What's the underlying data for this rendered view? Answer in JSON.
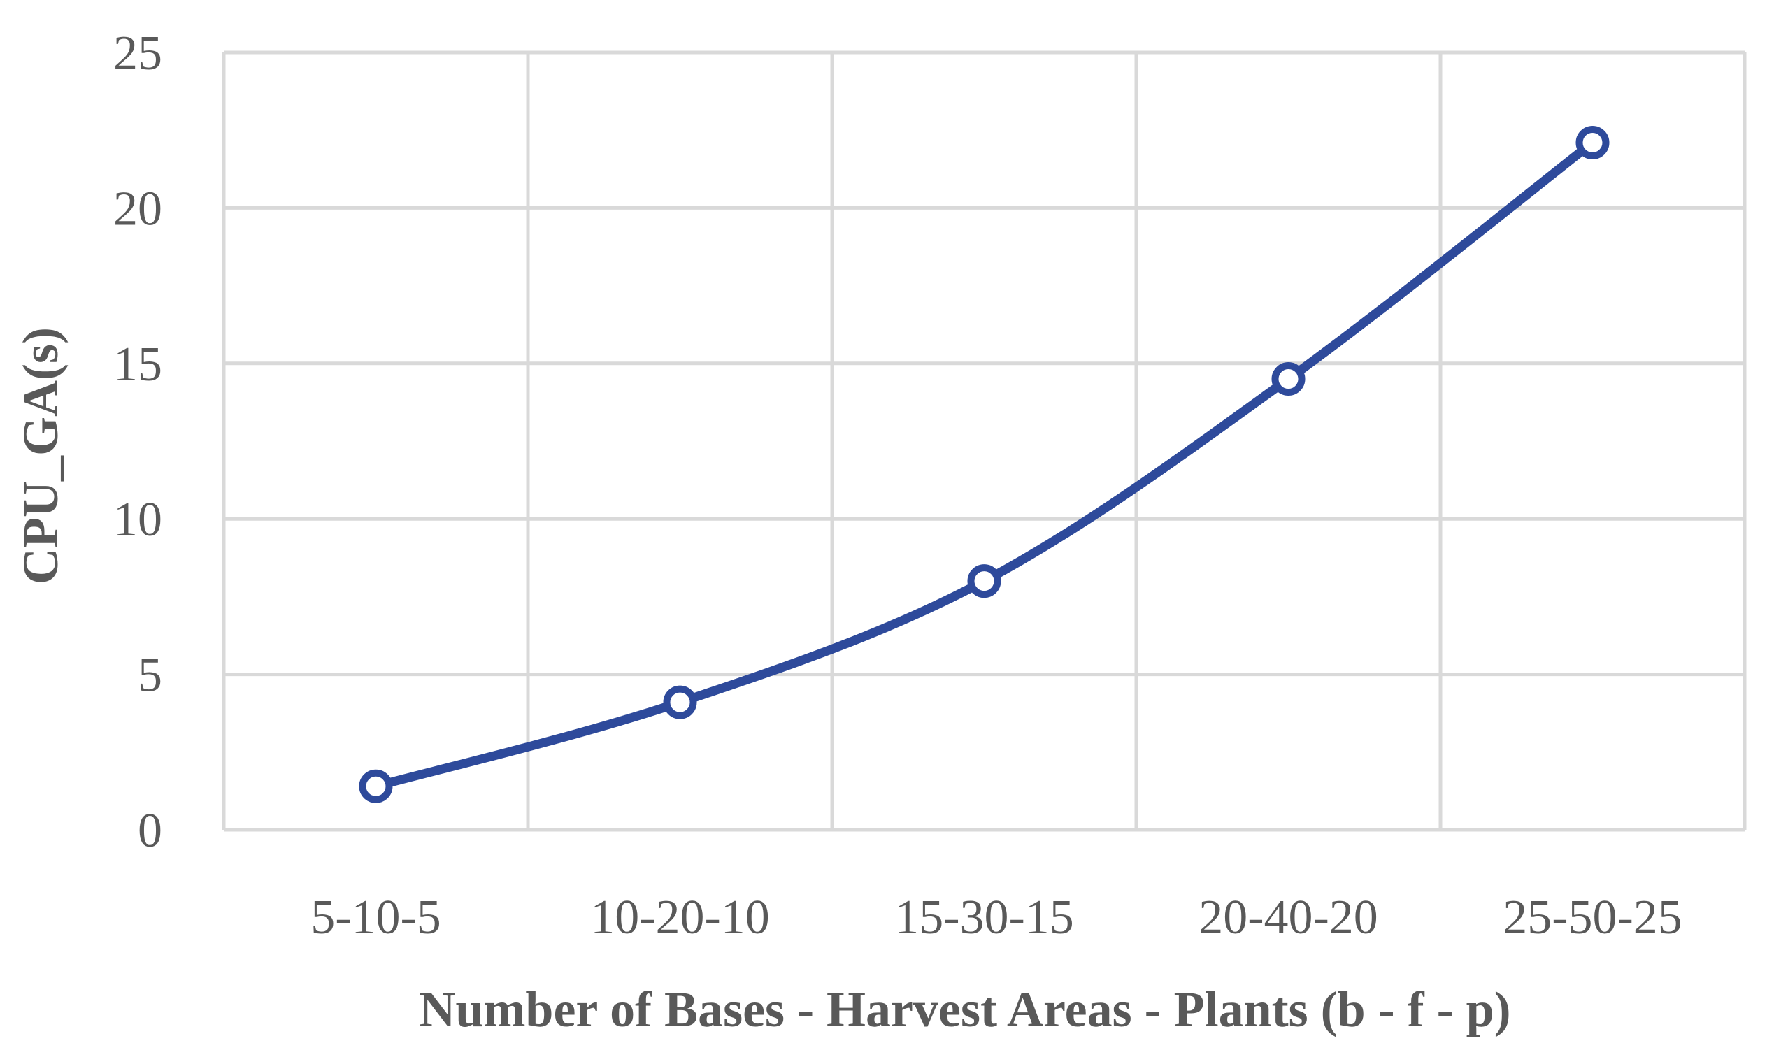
{
  "chart_data": {
    "type": "line",
    "title": "",
    "xlabel": "Number of Bases - Harvest Areas - Plants (b - f - p)",
    "ylabel": "CPU_GA(s)",
    "categories": [
      "5-10-5",
      "10-20-10",
      "15-30-15",
      "20-40-20",
      "25-50-25"
    ],
    "series": [
      {
        "values": [
          1.4,
          4.1,
          8.0,
          14.5,
          22.1
        ]
      }
    ],
    "ylim": [
      0,
      25
    ],
    "yticks": [
      "0",
      "5",
      "10",
      "15",
      "20",
      "25"
    ],
    "grid": true,
    "smooth": true,
    "legend": "none",
    "colors": {
      "line": "#2E4A9B",
      "marker_fill": "#FFFFFF",
      "grid": "#D9D9D9",
      "text": "#595959"
    }
  }
}
